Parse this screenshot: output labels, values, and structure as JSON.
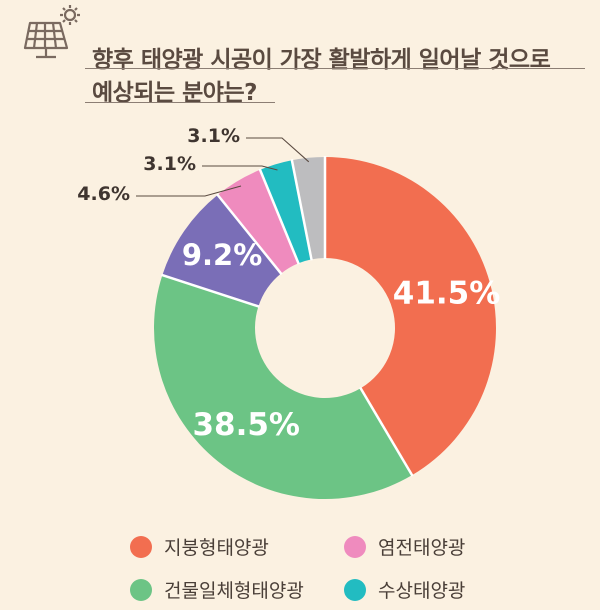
{
  "title": {
    "line1": "향후 태양광 시공이 가장 활발하게 일어날 것으로",
    "line2": "예상되는 분야는?"
  },
  "icon": "solar-panel-icon",
  "colors": {
    "background": "#FBF1E1",
    "title_text": "#5A4A40"
  },
  "chart_data": {
    "type": "pie",
    "donut": true,
    "title": "향후 태양광 시공이 가장 활발하게 일어날 것으로 예상되는 분야는?",
    "unit": "%",
    "slices": [
      {
        "name": "지붕형태양광",
        "value": 41.5,
        "label": "41.5%",
        "color": "#F26E50"
      },
      {
        "name": "건물일체형태양광",
        "value": 38.5,
        "label": "38.5%",
        "color": "#6CC485"
      },
      {
        "name": "",
        "value": 9.2,
        "label": "9.2%",
        "color": "#7A6EB7"
      },
      {
        "name": "염전태양광",
        "value": 4.6,
        "label": "4.6%",
        "color": "#EF8BBE"
      },
      {
        "name": "수상태양광",
        "value": 3.1,
        "label": "3.1%",
        "color": "#22BCC1"
      },
      {
        "name": "",
        "value": 3.1,
        "label": "3.1%",
        "color": "#BDBDBF"
      }
    ],
    "legend": [
      {
        "label": "지붕형태양광",
        "color": "#F26E50"
      },
      {
        "label": "염전태양광",
        "color": "#EF8BBE"
      },
      {
        "label": "건물일체형태양광",
        "color": "#6CC485"
      },
      {
        "label": "수상태양광",
        "color": "#22BCC1"
      }
    ],
    "legend_position": "bottom"
  }
}
